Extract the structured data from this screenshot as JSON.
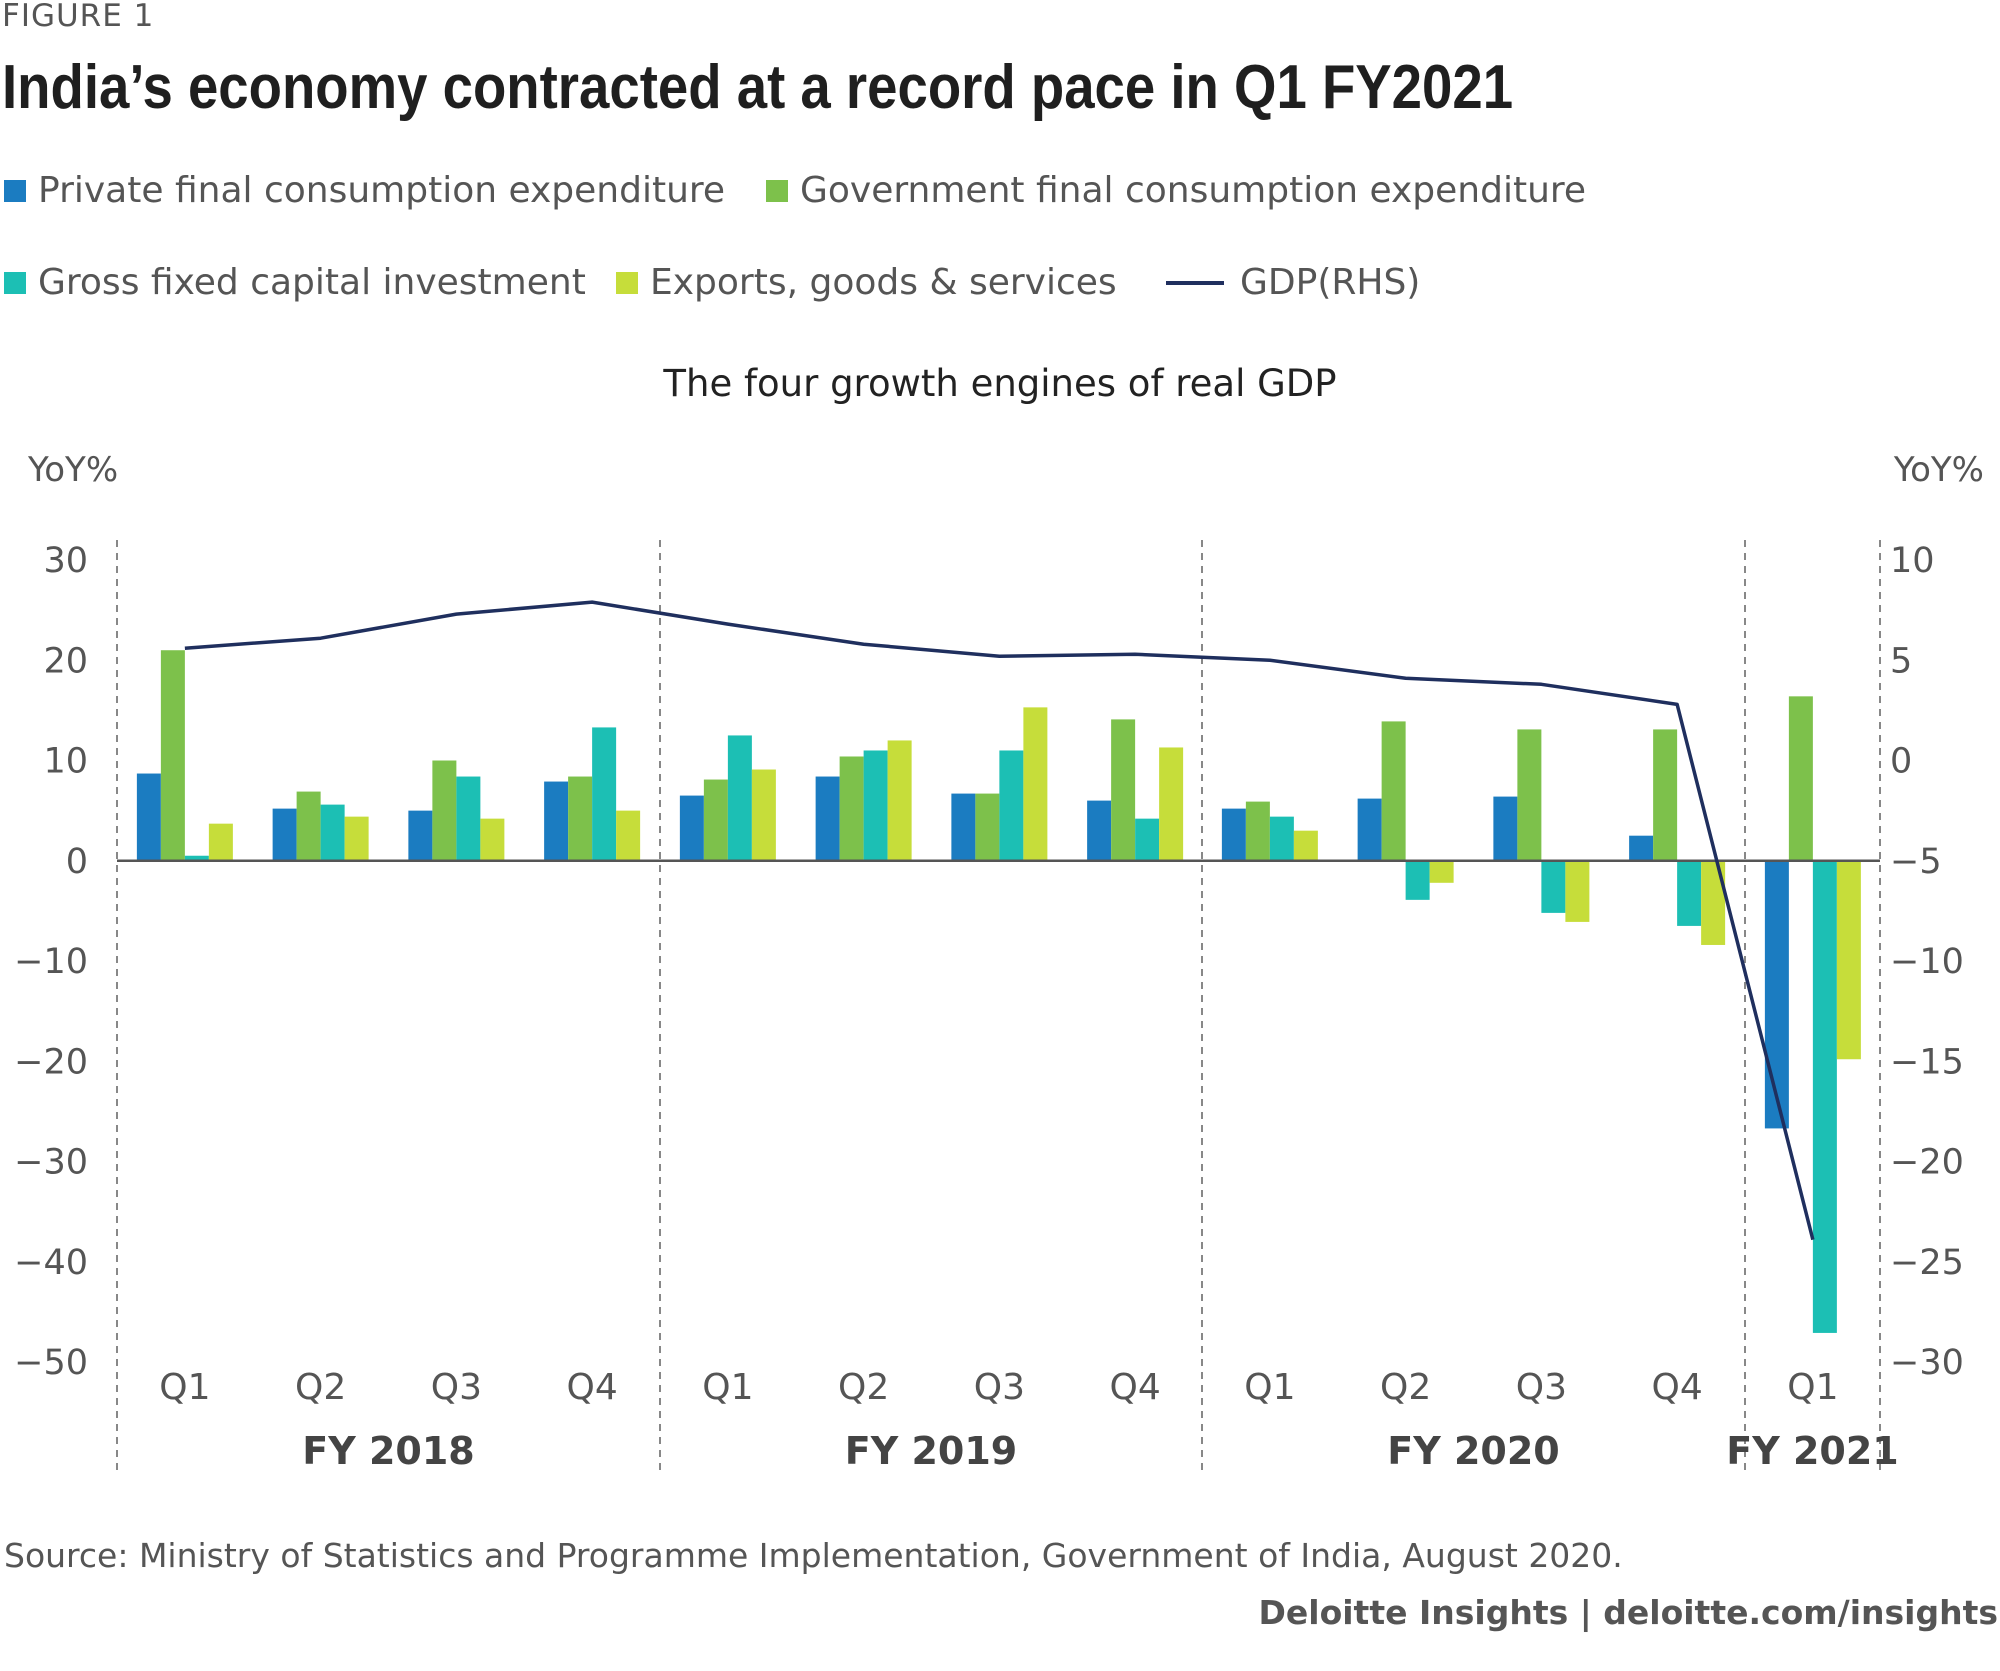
{
  "figure_label": "FIGURE 1",
  "title": "India’s economy contracted at a record pace in Q1 FY2021",
  "legend": [
    {
      "label": "Private final consumption expenditure",
      "color": "#1b7cc1",
      "kind": "swatch"
    },
    {
      "label": "Government final consumption expenditure",
      "color": "#7dc14b",
      "kind": "swatch"
    },
    {
      "label": "Gross fixed capital investment",
      "color": "#1cbfb4",
      "kind": "swatch"
    },
    {
      "label": "Exports, goods & services",
      "color": "#c6dd3a",
      "kind": "swatch"
    },
    {
      "label": "GDP(RHS)",
      "color": "#1f2f5e",
      "kind": "line"
    }
  ],
  "source": "Source: Ministry of Statistics and Programme Implementation, Government of India, August 2020.",
  "credit": "Deloitte Insights | deloitte.com/insights",
  "chart_data": {
    "type": "bar",
    "subtitle": "The four growth engines of real GDP",
    "ylabel_left": "YoY%",
    "ylabel_right": "YoY%",
    "ylim_left": [
      -50,
      30
    ],
    "ylim_right": [
      -30,
      10
    ],
    "yticks_left": [
      "30",
      "20",
      "10",
      "0",
      "−10",
      "−20",
      "−30",
      "−40",
      "−50"
    ],
    "yticks_right": [
      "10",
      "5",
      "0",
      "−5",
      "−10",
      "−15",
      "−20",
      "−25",
      "−30"
    ],
    "categories": [
      "Q1",
      "Q2",
      "Q3",
      "Q4",
      "Q1",
      "Q2",
      "Q3",
      "Q4",
      "Q1",
      "Q2",
      "Q3",
      "Q4",
      "Q1"
    ],
    "groups": [
      {
        "label": "FY 2018",
        "count": 4
      },
      {
        "label": "FY 2019",
        "count": 4
      },
      {
        "label": "FY 2020",
        "count": 4
      },
      {
        "label": "FY 2021",
        "count": 1
      }
    ],
    "series": [
      {
        "name": "Private final consumption expenditure",
        "color": "#1b7cc1",
        "values": [
          8.7,
          5.2,
          5.0,
          7.9,
          6.5,
          8.4,
          6.7,
          6.0,
          5.2,
          6.2,
          6.4,
          2.5,
          -26.7
        ]
      },
      {
        "name": "Government final consumption expenditure",
        "color": "#7dc14b",
        "values": [
          21.0,
          6.9,
          10.0,
          8.4,
          8.1,
          10.4,
          6.7,
          14.1,
          5.9,
          13.9,
          13.1,
          13.1,
          16.4
        ]
      },
      {
        "name": "Gross fixed capital investment",
        "color": "#1cbfb4",
        "values": [
          0.5,
          5.6,
          8.4,
          13.3,
          12.5,
          11.0,
          11.0,
          4.2,
          4.4,
          -3.9,
          -5.2,
          -6.5,
          -47.1
        ]
      },
      {
        "name": "Exports, goods & services",
        "color": "#c6dd3a",
        "values": [
          3.7,
          4.4,
          4.2,
          5.0,
          9.1,
          12.0,
          15.3,
          11.3,
          3.0,
          -2.2,
          -6.1,
          -8.4,
          -19.8
        ]
      }
    ],
    "line": {
      "name": "GDP(RHS)",
      "color": "#1f2f5e",
      "axis": "right",
      "values": [
        5.6,
        6.1,
        7.3,
        7.9,
        6.8,
        5.8,
        5.2,
        5.3,
        5.0,
        4.1,
        3.8,
        2.8,
        -23.9
      ]
    }
  }
}
